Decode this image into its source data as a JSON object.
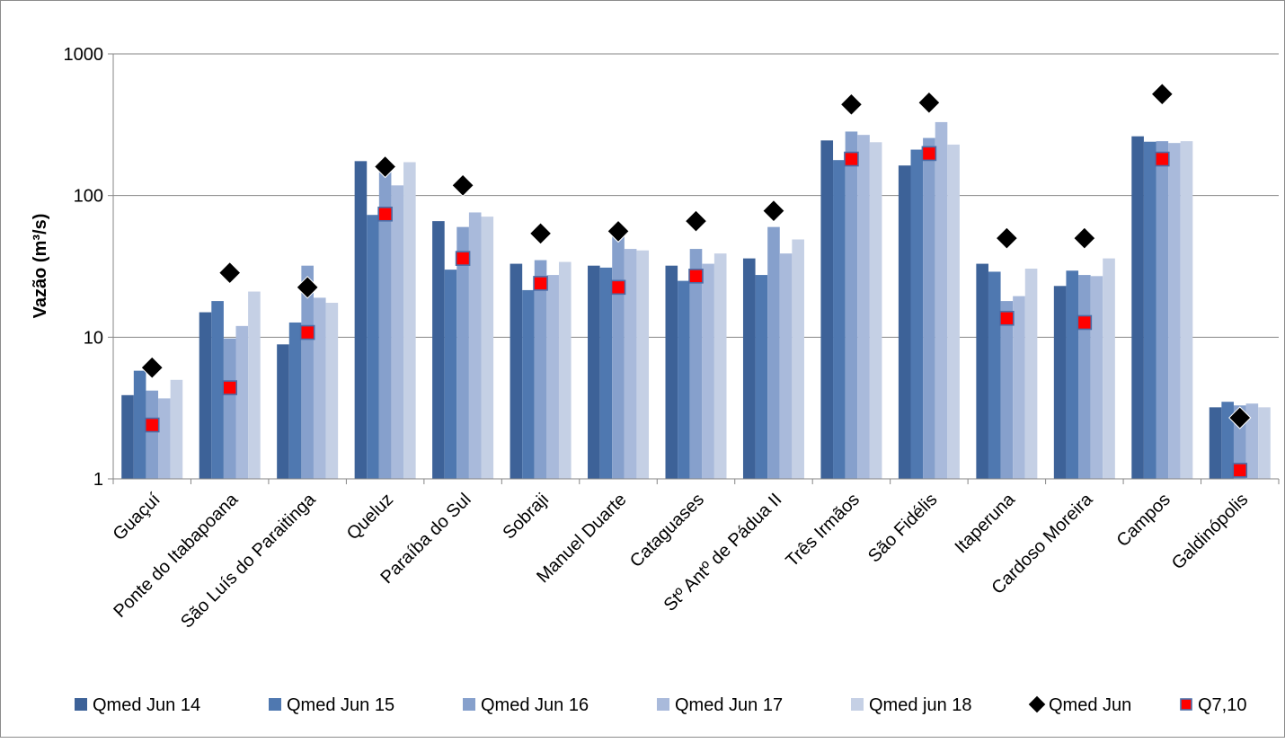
{
  "chart_data": {
    "type": "bar",
    "ylabel": "Vazão (m³/s)",
    "y_scale": "log",
    "ylim": [
      1,
      1000
    ],
    "y_ticks": [
      {
        "value": 1,
        "label": "1"
      },
      {
        "value": 10,
        "label": "10"
      },
      {
        "value": 100,
        "label": "100"
      },
      {
        "value": 1000,
        "label": "1000"
      }
    ],
    "grid": true,
    "legend_position": "bottom",
    "categories": [
      "Guaçuí",
      "Ponte do Itabapoana",
      "São Luís do Paraitinga",
      "Queluz",
      "Paraíba do Sul",
      "Sobraji",
      "Manuel Duarte",
      "Cataguases",
      "Stº Antº de Pádua II",
      "Três Irmãos",
      "São Fidélis",
      "Itaperuna",
      "Cardoso Moreira",
      "Campos",
      "Galdinópolis"
    ],
    "series": [
      {
        "name": "Qmed Jun 14",
        "kind": "bar",
        "color": "#3d6298",
        "values": [
          3.9,
          15,
          8.9,
          175,
          66,
          33,
          32,
          32,
          36,
          245,
          163,
          33,
          23,
          262,
          3.2
        ]
      },
      {
        "name": "Qmed Jun 15",
        "kind": "bar",
        "color": "#4f78b0",
        "values": [
          5.8,
          18,
          12.7,
          73,
          30,
          21.5,
          31,
          25,
          27.5,
          178,
          211,
          29,
          29.5,
          240,
          3.5
        ]
      },
      {
        "name": "Qmed Jun 16",
        "kind": "bar",
        "color": "#86a0cc",
        "values": [
          4.2,
          9.8,
          32,
          150,
          60,
          35,
          60,
          42,
          60,
          283,
          255,
          18,
          27.5,
          242,
          3.3
        ]
      },
      {
        "name": "Qmed Jun 17",
        "kind": "bar",
        "color": "#a9badb",
        "values": [
          3.7,
          12,
          19,
          118,
          76,
          27.5,
          42,
          33,
          39,
          268,
          330,
          19.5,
          27,
          235,
          3.4
        ]
      },
      {
        "name": "Qmed jun 18",
        "kind": "bar",
        "color": "#c5d0e5",
        "values": [
          5.0,
          21,
          17.5,
          172,
          71,
          34,
          41,
          39,
          49,
          238,
          229,
          30.5,
          36,
          242,
          3.2
        ]
      },
      {
        "name": "Qmed Jun",
        "kind": "marker",
        "marker": "diamond",
        "color": "#000000",
        "values": [
          6.1,
          28.5,
          22.5,
          160,
          118,
          54,
          56,
          66,
          78,
          440,
          453,
          50,
          50,
          520,
          2.7
        ]
      },
      {
        "name": "Q7,10",
        "kind": "marker",
        "marker": "square",
        "color": "#ff0000",
        "values": [
          2.4,
          4.4,
          10.8,
          74,
          36,
          24,
          22.5,
          27,
          null,
          181,
          198,
          13.6,
          12.7,
          181,
          1.15
        ]
      }
    ]
  }
}
